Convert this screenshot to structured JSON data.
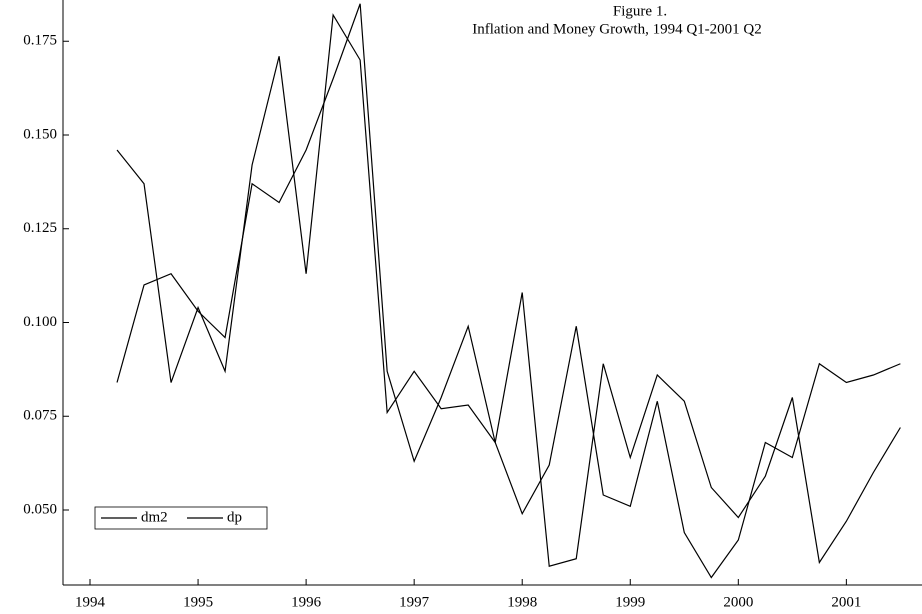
{
  "chart_data": {
    "type": "line",
    "title": "Figure 1.",
    "subtitle": "Inflation and Money Growth, 1994 Q1-2001 Q2",
    "x": [
      1994.25,
      1994.5,
      1994.75,
      1995,
      1995.25,
      1995.5,
      1995.75,
      1996,
      1996.25,
      1996.5,
      1996.75,
      1997,
      1997.25,
      1997.5,
      1997.75,
      1998,
      1998.25,
      1998.5,
      1998.75,
      1999,
      1999.25,
      1999.5,
      1999.75,
      2000,
      2000.25,
      2000.5,
      2000.75,
      2001,
      2001.25,
      2001.5
    ],
    "series": [
      {
        "name": "dm2",
        "color": "#000000",
        "values": [
          0.146,
          0.137,
          0.084,
          0.104,
          0.087,
          0.142,
          0.171,
          0.113,
          0.182,
          0.17,
          0.076,
          0.087,
          0.077,
          0.078,
          0.068,
          0.108,
          0.035,
          0.037,
          0.089,
          0.064,
          0.086,
          0.079,
          0.056,
          0.048,
          0.059,
          0.08,
          0.036,
          0.047,
          0.06,
          0.072
        ]
      },
      {
        "name": "dp",
        "color": "#000000",
        "values": [
          0.084,
          0.11,
          0.113,
          0.103,
          0.096,
          0.137,
          0.132,
          0.146,
          0.165,
          0.185,
          0.087,
          0.063,
          0.08,
          0.099,
          0.068,
          0.049,
          0.062,
          0.099,
          0.054,
          0.051,
          0.079,
          0.044,
          0.032,
          0.042,
          0.068,
          0.064,
          0.089,
          0.084,
          0.086,
          0.089
        ]
      }
    ],
    "xlim": [
      1993.75,
      2001.7
    ],
    "xticks": [
      1994,
      1995,
      1996,
      1997,
      1998,
      1999,
      2000,
      2001
    ],
    "ylim": [
      0.03,
      0.186
    ],
    "yticks": [
      {
        "value": 0.05,
        "label": "0.050"
      },
      {
        "value": 0.075,
        "label": "0.075"
      },
      {
        "value": 0.1,
        "label": "0.100"
      },
      {
        "value": 0.125,
        "label": "0.125"
      },
      {
        "value": 0.15,
        "label": "0.150"
      },
      {
        "value": 0.175,
        "label": "0.175"
      }
    ],
    "legend": "lower left"
  }
}
